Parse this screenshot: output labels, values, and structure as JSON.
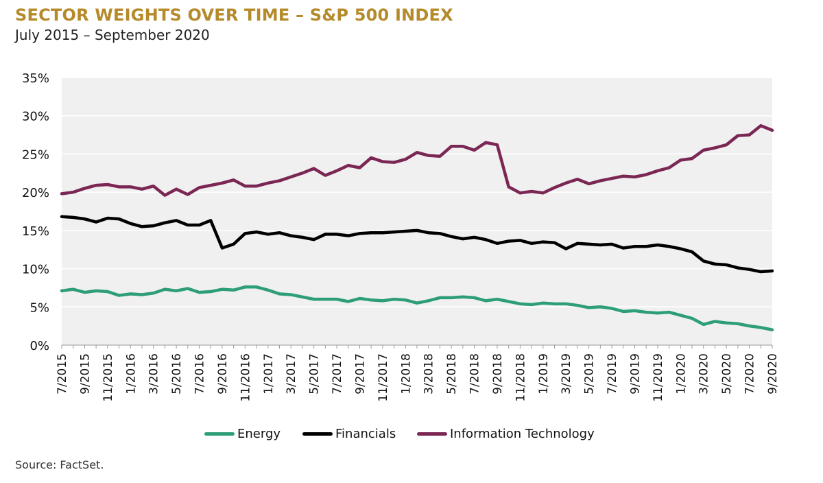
{
  "header": {
    "title": "SECTOR WEIGHTS OVER TIME – S&P 500 INDEX",
    "subtitle": "July 2015 – September 2020"
  },
  "footer": {
    "source": "Source: FactSet."
  },
  "colors": {
    "title": "#b58a2a",
    "plot_bg": "#f0f0f0",
    "grid": "#ffffff",
    "energy": "#2e9e78",
    "financials": "#000000",
    "it": "#7b2754"
  },
  "chart_data": {
    "type": "line",
    "title": "SECTOR WEIGHTS OVER TIME – S&P 500 INDEX",
    "subtitle": "July 2015 – September 2020",
    "xlabel": "",
    "ylabel": "",
    "ylim": [
      0,
      35
    ],
    "yticks": [
      "0%",
      "5%",
      "10%",
      "15%",
      "20%",
      "25%",
      "30%",
      "35%"
    ],
    "grid": true,
    "legend_position": "bottom",
    "x": [
      "7/2015",
      "8/2015",
      "9/2015",
      "10/2015",
      "11/2015",
      "12/2015",
      "1/2016",
      "2/2016",
      "3/2016",
      "4/2016",
      "5/2016",
      "6/2016",
      "7/2016",
      "8/2016",
      "9/2016",
      "10/2016",
      "11/2016",
      "12/2016",
      "1/2017",
      "2/2017",
      "3/2017",
      "4/2017",
      "5/2017",
      "6/2017",
      "7/2017",
      "8/2017",
      "9/2017",
      "10/2017",
      "11/2017",
      "12/2017",
      "1/2018",
      "2/2018",
      "3/2018",
      "4/2018",
      "5/2018",
      "6/2018",
      "7/2018",
      "8/2018",
      "9/2018",
      "10/2018",
      "11/2018",
      "12/2018",
      "1/2019",
      "2/2019",
      "3/2019",
      "4/2019",
      "5/2019",
      "6/2019",
      "7/2019",
      "8/2019",
      "9/2019",
      "10/2019",
      "11/2019",
      "12/2019",
      "1/2020",
      "2/2020",
      "3/2020",
      "4/2020",
      "5/2020",
      "6/2020",
      "7/2020",
      "8/2020",
      "9/2020"
    ],
    "xtick_labels": [
      "7/2015",
      "9/2015",
      "11/2015",
      "1/2016",
      "3/2016",
      "5/2016",
      "7/2016",
      "9/2016",
      "11/2016",
      "1/2017",
      "3/2017",
      "5/2017",
      "7/2017",
      "9/2017",
      "11/2017",
      "1/2018",
      "3/2018",
      "5/2018",
      "7/2018",
      "9/2018",
      "11/2018",
      "1/2019",
      "3/2019",
      "5/2019",
      "7/2019",
      "9/2019",
      "11/2019",
      "1/2020",
      "3/2020",
      "5/2020",
      "7/2020",
      "9/2020"
    ],
    "series": [
      {
        "name": "Energy",
        "color": "#2e9e78",
        "values": [
          7.1,
          7.3,
          6.9,
          7.1,
          7.0,
          6.5,
          6.7,
          6.6,
          6.8,
          7.3,
          7.1,
          7.4,
          6.9,
          7.0,
          7.3,
          7.2,
          7.6,
          7.6,
          7.2,
          6.7,
          6.6,
          6.3,
          6.0,
          6.0,
          6.0,
          5.7,
          6.1,
          5.9,
          5.8,
          6.0,
          5.9,
          5.5,
          5.8,
          6.2,
          6.2,
          6.3,
          6.2,
          5.8,
          6.0,
          5.7,
          5.4,
          5.3,
          5.5,
          5.4,
          5.4,
          5.2,
          4.9,
          5.0,
          4.8,
          4.4,
          4.5,
          4.3,
          4.2,
          4.3,
          3.9,
          3.5,
          2.7,
          3.1,
          2.9,
          2.8,
          2.5,
          2.3,
          2.0
        ]
      },
      {
        "name": "Financials",
        "color": "#000000",
        "values": [
          16.8,
          16.7,
          16.5,
          16.1,
          16.6,
          16.5,
          15.9,
          15.5,
          15.6,
          16.0,
          16.3,
          15.7,
          15.7,
          16.3,
          12.7,
          13.2,
          14.6,
          14.8,
          14.5,
          14.7,
          14.3,
          14.1,
          13.8,
          14.5,
          14.5,
          14.3,
          14.6,
          14.7,
          14.7,
          14.8,
          14.9,
          15.0,
          14.7,
          14.6,
          14.2,
          13.9,
          14.1,
          13.8,
          13.3,
          13.6,
          13.7,
          13.3,
          13.5,
          13.4,
          12.6,
          13.3,
          13.2,
          13.1,
          13.2,
          12.7,
          12.9,
          12.9,
          13.1,
          12.9,
          12.6,
          12.2,
          11.0,
          10.6,
          10.5,
          10.1,
          9.9,
          9.6,
          9.7
        ]
      },
      {
        "name": "Information Technology",
        "color": "#7b2754",
        "values": [
          19.8,
          20.0,
          20.5,
          20.9,
          21.0,
          20.7,
          20.7,
          20.4,
          20.8,
          19.6,
          20.4,
          19.7,
          20.6,
          20.9,
          21.2,
          21.6,
          20.8,
          20.8,
          21.2,
          21.5,
          22.0,
          22.5,
          23.1,
          22.2,
          22.8,
          23.5,
          23.2,
          24.5,
          24.0,
          23.9,
          24.3,
          25.2,
          24.8,
          24.7,
          26.0,
          26.0,
          25.5,
          26.5,
          26.2,
          20.7,
          19.9,
          20.1,
          19.9,
          20.6,
          21.2,
          21.7,
          21.1,
          21.5,
          21.8,
          22.1,
          22.0,
          22.3,
          22.8,
          23.2,
          24.2,
          24.4,
          25.5,
          25.8,
          26.2,
          27.4,
          27.5,
          28.7,
          28.1
        ]
      }
    ]
  }
}
